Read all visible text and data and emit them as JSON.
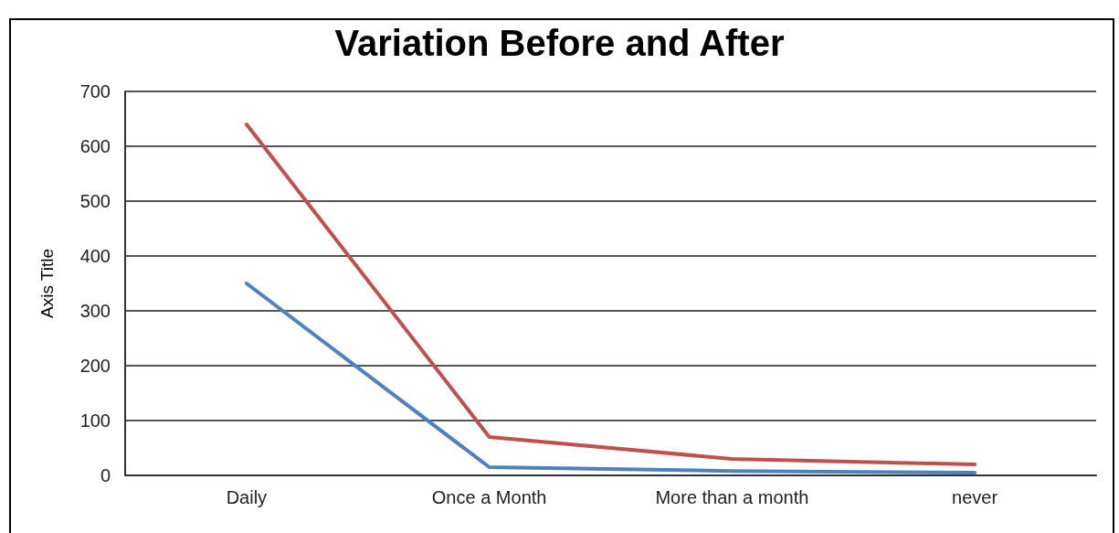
{
  "chart_data": {
    "type": "line",
    "title": "Variation Before and After",
    "ylabel": "Axis Title",
    "categories": [
      "Daily",
      "Once a Month",
      "More than a month",
      "never"
    ],
    "series": [
      {
        "color": "#4f81bd",
        "values": [
          350,
          15,
          8,
          5
        ]
      },
      {
        "color": "#c0504d",
        "values": [
          640,
          70,
          30,
          20
        ]
      }
    ],
    "ylim": [
      0,
      700
    ],
    "yticks": [
      0,
      100,
      200,
      300,
      400,
      500,
      600,
      700
    ],
    "grid": "y"
  }
}
